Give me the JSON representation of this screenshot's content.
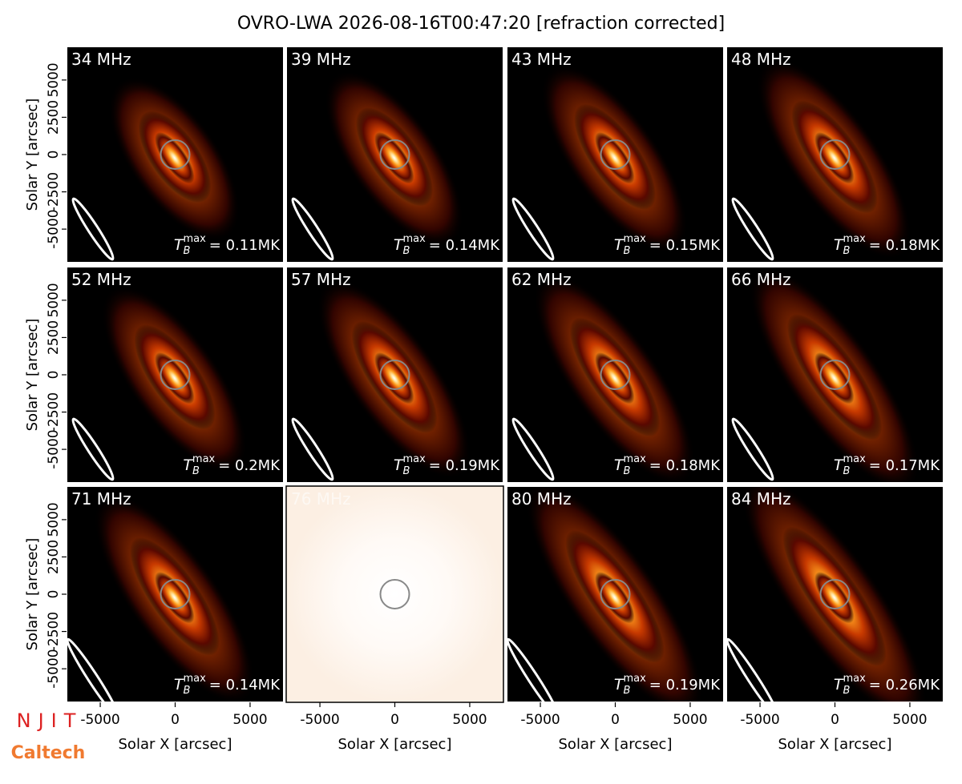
{
  "title": "OVRO-LWA 2026-08-16T00:47:20 [refraction corrected]",
  "logos": [
    "NJIT",
    "Caltech"
  ],
  "chart_data": [
    {
      "type": "image",
      "title": "34 MHz",
      "annotation": {
        "symbol": "T",
        "sub": "B",
        "sup": "max",
        "text": "= 0.11MK"
      },
      "xlim": [
        -7250,
        7250
      ],
      "ylim": [
        -7250,
        7250
      ],
      "yticks": [
        -5000,
        -2500,
        0,
        2500,
        5000
      ],
      "ylabel": "Solar Y [arcsec]"
    },
    {
      "type": "image",
      "title": "39 MHz",
      "annotation": {
        "symbol": "T",
        "sub": "B",
        "sup": "max",
        "text": "= 0.14MK"
      },
      "xlim": [
        -7250,
        7250
      ],
      "ylim": [
        -7250,
        7250
      ]
    },
    {
      "type": "image",
      "title": "43 MHz",
      "annotation": {
        "symbol": "T",
        "sub": "B",
        "sup": "max",
        "text": "= 0.15MK"
      },
      "xlim": [
        -7250,
        7250
      ],
      "ylim": [
        -7250,
        7250
      ]
    },
    {
      "type": "image",
      "title": "48 MHz",
      "annotation": {
        "symbol": "T",
        "sub": "B",
        "sup": "max",
        "text": "= 0.18MK"
      },
      "xlim": [
        -7250,
        7250
      ],
      "ylim": [
        -7250,
        7250
      ]
    },
    {
      "type": "image",
      "title": "52 MHz",
      "annotation": {
        "symbol": "T",
        "sub": "B",
        "sup": "max",
        "text": "= 0.2MK"
      },
      "xlim": [
        -7250,
        7250
      ],
      "ylim": [
        -7250,
        7250
      ],
      "yticks": [
        -5000,
        -2500,
        0,
        2500,
        5000
      ],
      "ylabel": "Solar Y [arcsec]"
    },
    {
      "type": "image",
      "title": "57 MHz",
      "annotation": {
        "symbol": "T",
        "sub": "B",
        "sup": "max",
        "text": "= 0.19MK"
      },
      "xlim": [
        -7250,
        7250
      ],
      "ylim": [
        -7250,
        7250
      ]
    },
    {
      "type": "image",
      "title": "62 MHz",
      "annotation": {
        "symbol": "T",
        "sub": "B",
        "sup": "max",
        "text": "= 0.18MK"
      },
      "xlim": [
        -7250,
        7250
      ],
      "ylim": [
        -7250,
        7250
      ]
    },
    {
      "type": "image",
      "title": "66 MHz",
      "annotation": {
        "symbol": "T",
        "sub": "B",
        "sup": "max",
        "text": "= 0.17MK"
      },
      "xlim": [
        -7250,
        7250
      ],
      "ylim": [
        -7250,
        7250
      ]
    },
    {
      "type": "image",
      "title": "71 MHz",
      "annotation": {
        "symbol": "T",
        "sub": "B",
        "sup": "max",
        "text": "= 0.14MK"
      },
      "xlim": [
        -7250,
        7250
      ],
      "ylim": [
        -7250,
        7250
      ],
      "xticks": [
        -5000,
        0,
        5000
      ],
      "yticks": [
        -5000,
        -2500,
        0,
        2500,
        5000
      ],
      "xlabel": "Solar X [arcsec]",
      "ylabel": "Solar Y [arcsec]"
    },
    {
      "type": "image",
      "title": "76 MHz",
      "washed_out": true,
      "xlim": [
        -7250,
        7250
      ],
      "ylim": [
        -7250,
        7250
      ],
      "xticks": [
        -5000,
        0,
        5000
      ],
      "xlabel": "Solar X [arcsec]"
    },
    {
      "type": "image",
      "title": "80 MHz",
      "annotation": {
        "symbol": "T",
        "sub": "B",
        "sup": "max",
        "text": "= 0.19MK"
      },
      "xlim": [
        -7250,
        7250
      ],
      "ylim": [
        -7250,
        7250
      ],
      "xticks": [
        -5000,
        0,
        5000
      ],
      "xlabel": "Solar X [arcsec]"
    },
    {
      "type": "image",
      "title": "84 MHz",
      "annotation": {
        "symbol": "T",
        "sub": "B",
        "sup": "max",
        "text": "= 0.26MK"
      },
      "xlim": [
        -7250,
        7250
      ],
      "ylim": [
        -7250,
        7250
      ],
      "xticks": [
        -5000,
        0,
        5000
      ],
      "xlabel": "Solar X [arcsec]"
    }
  ]
}
